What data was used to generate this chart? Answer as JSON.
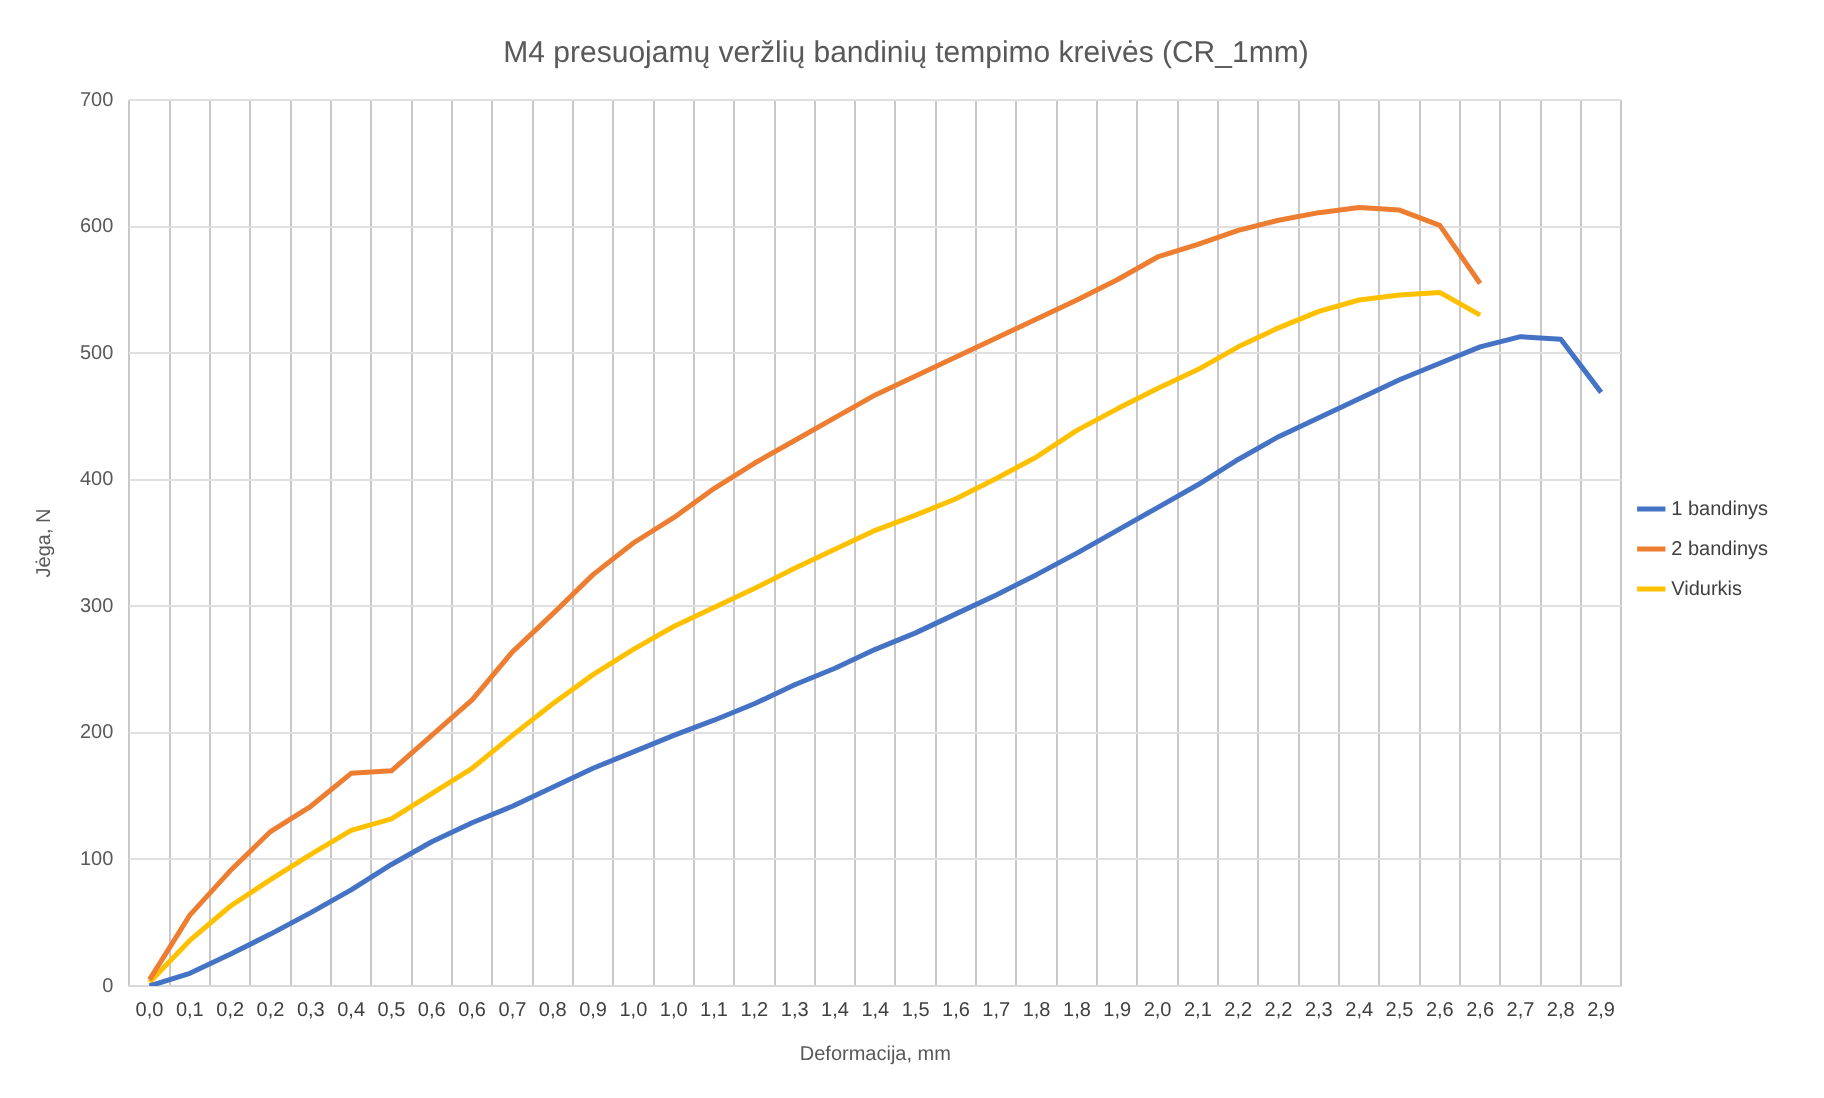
{
  "chart_data": {
    "type": "line",
    "title": "M4 presuojamų veržlių bandinių tempimo kreivės (CR_1mm)",
    "xlabel": "Deformacija, mm",
    "ylabel": "Jėga, N",
    "categories": [
      "0,0",
      "0,1",
      "0,2",
      "0,2",
      "0,3",
      "0,4",
      "0,5",
      "0,6",
      "0,6",
      "0,7",
      "0,8",
      "0,9",
      "1,0",
      "1,0",
      "1,1",
      "1,2",
      "1,3",
      "1,4",
      "1,4",
      "1,5",
      "1,6",
      "1,7",
      "1,8",
      "1,8",
      "1,9",
      "2,0",
      "2,1",
      "2,2",
      "2,2",
      "2,3",
      "2,4",
      "2,5",
      "2,6",
      "2,6",
      "2,7",
      "2,8",
      "2,9"
    ],
    "series": [
      {
        "name": "1 bandinys",
        "color": "#4472c4",
        "values": [
          0,
          10,
          25,
          41,
          58,
          76,
          96,
          114,
          129,
          142,
          157,
          172,
          185,
          198,
          210,
          223,
          238,
          251,
          266,
          279,
          294,
          309,
          325,
          342,
          360,
          378,
          396,
          416,
          434,
          449,
          464,
          479,
          492,
          505,
          513,
          511,
          469
        ]
      },
      {
        "name": "2 bandinys",
        "color": "#ed7d31",
        "values": [
          5,
          56,
          91,
          122,
          142,
          168,
          170,
          198,
          226,
          264,
          294,
          325,
          350,
          370,
          393,
          413,
          431,
          449,
          467,
          482,
          497,
          512,
          527,
          542,
          558,
          576,
          586,
          597,
          605,
          611,
          615,
          613,
          601,
          555,
          null,
          null,
          null
        ]
      },
      {
        "name": "Vidurkis",
        "color": "#ffc000",
        "values": [
          3,
          36,
          63,
          84,
          104,
          123,
          132,
          152,
          172,
          198,
          223,
          246,
          266,
          284,
          299,
          314,
          330,
          345,
          360,
          372,
          385,
          401,
          418,
          439,
          456,
          472,
          487,
          505,
          520,
          533,
          542,
          546,
          548,
          530,
          null,
          null,
          null
        ]
      }
    ],
    "ylim": [
      0,
      700
    ],
    "yticks": [
      0,
      100,
      200,
      300,
      400,
      500,
      600,
      700
    ],
    "grid": true,
    "legend": "right",
    "marker": "none",
    "line_style": "solid"
  }
}
